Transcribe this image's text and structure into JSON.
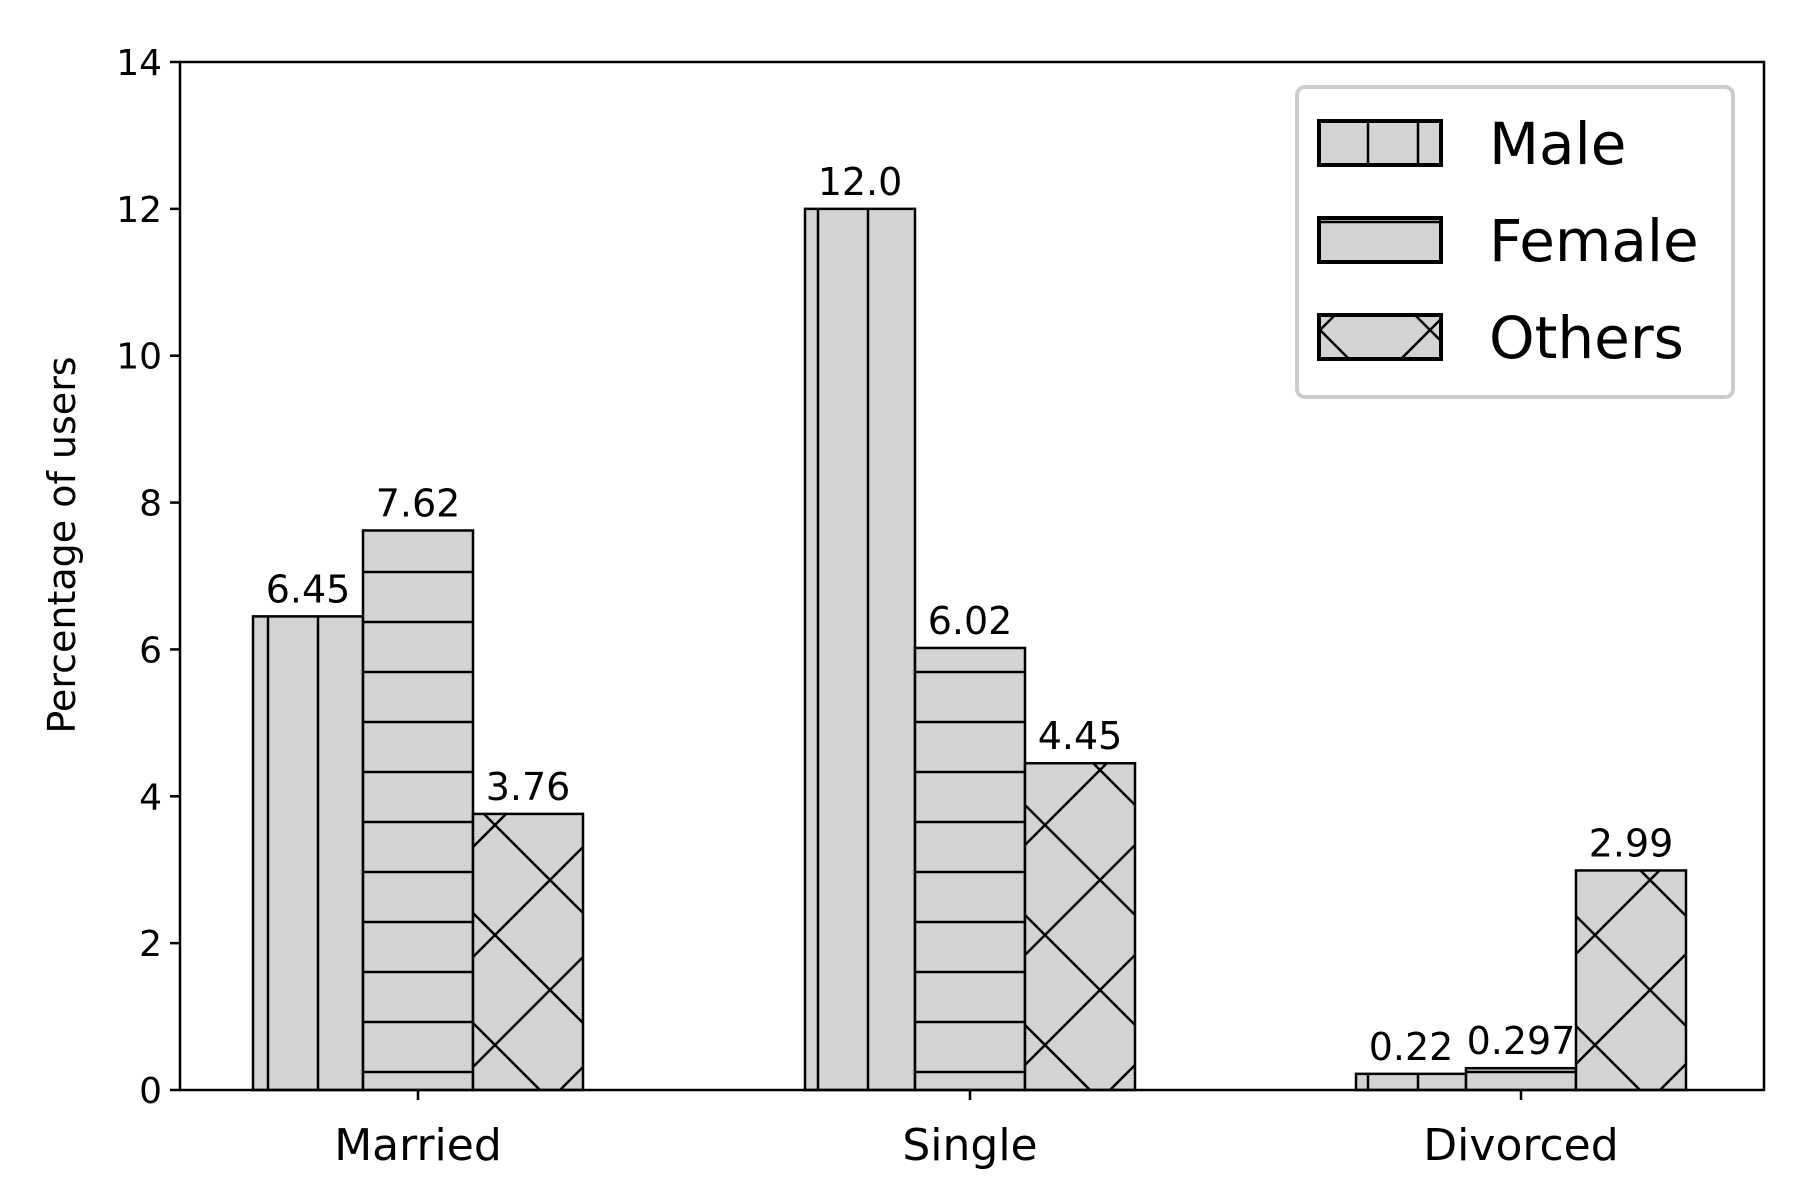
{
  "chart_data": {
    "type": "bar",
    "title": "",
    "xlabel": "",
    "ylabel": "Percentage of users",
    "categories": [
      "Married",
      "Single",
      "Divorced"
    ],
    "series": [
      {
        "name": "Male",
        "values": [
          6.45,
          12.0,
          0.22
        ],
        "labels": [
          "6.45",
          "12.0",
          "0.22"
        ],
        "hatch": "vertical"
      },
      {
        "name": "Female",
        "values": [
          7.62,
          6.02,
          0.297
        ],
        "labels": [
          "7.62",
          "6.02",
          "0.297"
        ],
        "hatch": "horizontal"
      },
      {
        "name": "Others",
        "values": [
          3.76,
          4.45,
          2.99
        ],
        "labels": [
          "3.76",
          "4.45",
          "2.99"
        ],
        "hatch": "cross"
      }
    ],
    "ylim": [
      0,
      14
    ],
    "yticks": [
      0,
      2,
      4,
      6,
      8,
      10,
      12,
      14
    ],
    "grid": false,
    "legend_position": "top-right",
    "colors": {
      "bar_fill": "#d3d3d3",
      "edge": "#000000",
      "background": "#ffffff"
    }
  }
}
